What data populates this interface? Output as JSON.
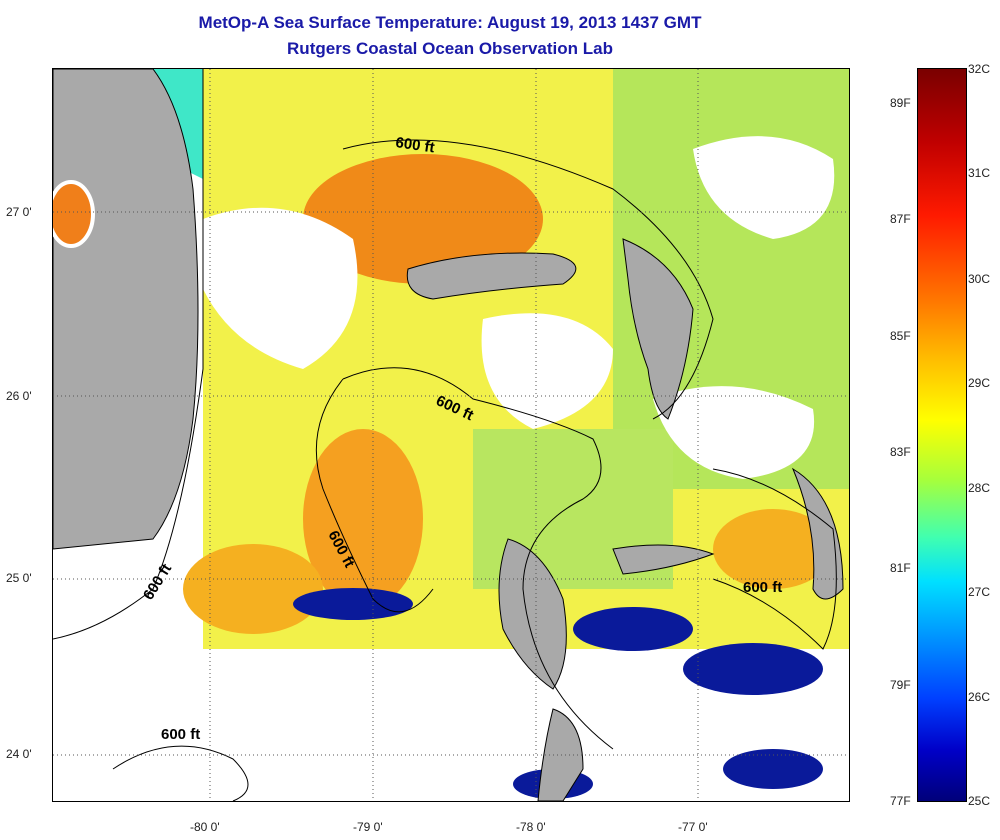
{
  "title": {
    "line1": "MetOp-A Sea Surface Temperature:  August 19, 2013 1437 GMT",
    "line2": "Rutgers Coastal Ocean Observation Lab"
  },
  "map": {
    "latitude_labels": [
      "27 0'",
      "26 0'",
      "25 0'",
      "24 0'"
    ],
    "longitude_labels": [
      "-80 0'",
      "-79 0'",
      "-78 0'",
      "-77 0'"
    ],
    "contour_labels": [
      "600 ft",
      "600 ft",
      "600 ft",
      "600 ft",
      "600 ft",
      "600 ft"
    ],
    "colors": {
      "land": "#a9a9a9",
      "cloud": "#ffffff",
      "warm": "#f07f1a",
      "yellow": "#f0ee2a",
      "green": "#b5e65a",
      "cold": "#0a1a9a"
    }
  },
  "colorbar": {
    "celsius_labels": [
      "32C",
      "31C",
      "30C",
      "29C",
      "28C",
      "27C",
      "26C",
      "25C"
    ],
    "fahrenheit_labels": [
      "89F",
      "87F",
      "85F",
      "83F",
      "81F",
      "79F",
      "77F"
    ],
    "colors": [
      "#7a0000",
      "#ff1a00",
      "#ff7a00",
      "#ffff00",
      "#40ffb0",
      "#00e0ff",
      "#0040ff",
      "#00007a"
    ]
  }
}
